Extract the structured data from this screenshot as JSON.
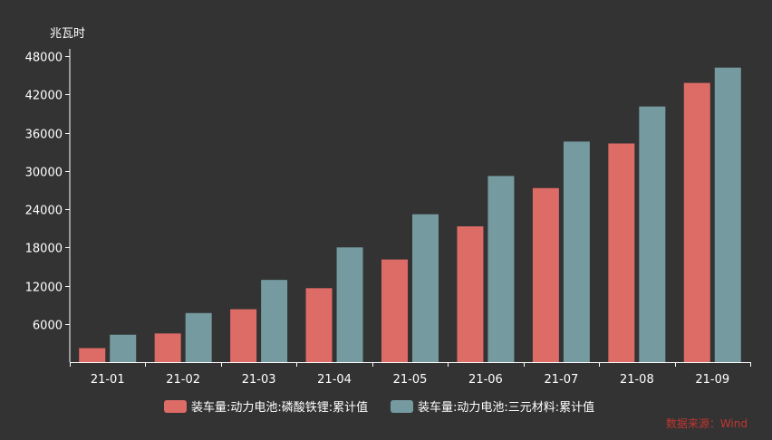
{
  "chart_data": {
    "type": "bar",
    "ylabel": "兆瓦时",
    "categories": [
      "21-01",
      "21-02",
      "21-03",
      "21-04",
      "21-05",
      "21-06",
      "21-07",
      "21-08",
      "21-09"
    ],
    "series": [
      {
        "name": "装车量:动力电池:磷酸铁锂:累计值",
        "color": "#dd6b66",
        "values": [
          2200,
          4500,
          8300,
          11600,
          16100,
          21300,
          27300,
          34300,
          43800
        ]
      },
      {
        "name": "装车量:动力电池:三元材料:累计值",
        "color": "#759aa0",
        "values": [
          4300,
          7700,
          12900,
          18000,
          23200,
          29200,
          34600,
          40100,
          46200
        ]
      }
    ],
    "yticks": [
      6000,
      12000,
      18000,
      24000,
      30000,
      36000,
      42000,
      48000
    ],
    "ylim": [
      0,
      48000
    ],
    "grid": false,
    "legend_position": "bottom",
    "source": "数据来源：Wind"
  }
}
